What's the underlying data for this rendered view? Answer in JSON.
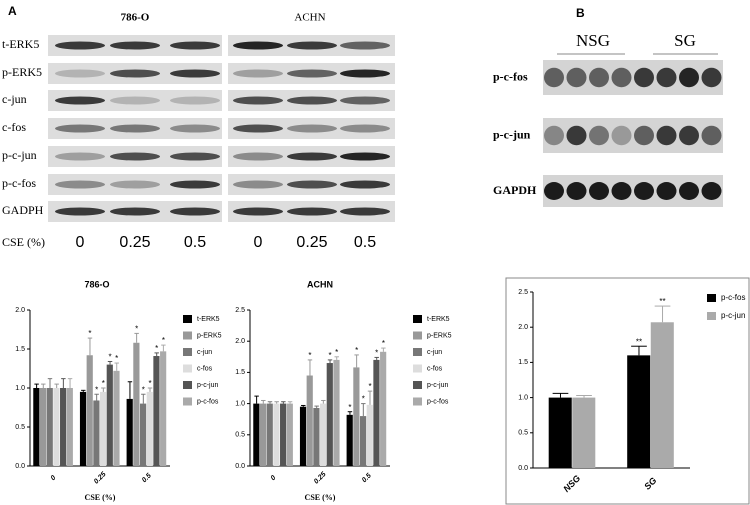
{
  "panel_a": {
    "label": "A",
    "cell_lines": [
      "786-O",
      "ACHN"
    ],
    "proteins": [
      "t-ERK5",
      "p-ERK5",
      "c-jun",
      "c-fos",
      "p-c-jun",
      "p-c-fos",
      "GADPH"
    ],
    "dose_label": "CSE (%)",
    "doses": [
      "0",
      "0.25",
      "0.5",
      "0",
      "0.25",
      "0.5"
    ]
  },
  "panel_b": {
    "label": "B",
    "groups": [
      "NSG",
      "SG"
    ],
    "proteins": [
      "p-c-fos",
      "p-c-jun",
      "GAPDH"
    ]
  },
  "chart_data": [
    {
      "type": "bar",
      "title": "786-O",
      "x_label": "CSE (%)",
      "categories": [
        "0",
        "0.25",
        "0.5"
      ],
      "ylim": [
        0,
        2.0
      ],
      "yticks": [
        {
          "value": 0,
          "label": "0.0"
        },
        {
          "value": 0.5,
          "label": "0.5"
        },
        {
          "value": 1,
          "label": "1.0"
        },
        {
          "value": 1.5,
          "label": "1.5"
        },
        {
          "value": 2,
          "label": "2.0"
        }
      ],
      "legend": "right",
      "series": [
        {
          "name": "t-ERK5",
          "color": "#000000",
          "values": [
            1.0,
            0.95,
            0.86
          ],
          "errors": [
            0.05,
            0.02,
            0.22
          ],
          "significance": [
            null,
            null,
            null
          ]
        },
        {
          "name": "p-ERK5",
          "color": "#999999",
          "values": [
            1.0,
            1.42,
            1.58
          ],
          "errors": [
            0.05,
            0.22,
            0.12
          ],
          "significance": [
            null,
            "*",
            "*"
          ]
        },
        {
          "name": "c-jun",
          "color": "#777777",
          "values": [
            1.0,
            0.84,
            0.8
          ],
          "errors": [
            0.12,
            0.08,
            0.12
          ],
          "significance": [
            null,
            "*",
            "*"
          ]
        },
        {
          "name": "c-fos",
          "color": "#dddddd",
          "values": [
            1.0,
            0.95,
            0.95
          ],
          "errors": [
            0.05,
            0.05,
            0.05
          ],
          "significance": [
            null,
            "*",
            "*"
          ]
        },
        {
          "name": "p-c-jun",
          "color": "#555555",
          "values": [
            1.0,
            1.3,
            1.41
          ],
          "errors": [
            0.12,
            0.04,
            0.04
          ],
          "significance": [
            null,
            "*",
            "*"
          ]
        },
        {
          "name": "p-c-fos",
          "color": "#aaaaaa",
          "values": [
            1.0,
            1.22,
            1.47
          ],
          "errors": [
            0.12,
            0.1,
            0.08
          ],
          "significance": [
            null,
            "*",
            "*"
          ]
        }
      ]
    },
    {
      "type": "bar",
      "title": "ACHN",
      "x_label": "CSE (%)",
      "categories": [
        "0",
        "0.25",
        "0.5"
      ],
      "ylim": [
        0,
        2.5
      ],
      "yticks": [
        {
          "value": 0,
          "label": "0.0"
        },
        {
          "value": 0.5,
          "label": "0.5"
        },
        {
          "value": 1,
          "label": "1.0"
        },
        {
          "value": 1.5,
          "label": "1.5"
        },
        {
          "value": 2,
          "label": "2.0"
        },
        {
          "value": 2.5,
          "label": "2.5"
        }
      ],
      "legend": "right",
      "series": [
        {
          "name": "t-ERK5",
          "color": "#000000",
          "values": [
            1.0,
            0.95,
            0.82
          ],
          "errors": [
            0.12,
            0.02,
            0.05
          ],
          "significance": [
            null,
            null,
            "*"
          ]
        },
        {
          "name": "p-ERK5",
          "color": "#999999",
          "values": [
            1.0,
            1.45,
            1.58
          ],
          "errors": [
            0.05,
            0.25,
            0.2
          ],
          "significance": [
            null,
            "*",
            "*"
          ]
        },
        {
          "name": "c-jun",
          "color": "#777777",
          "values": [
            1.0,
            0.93,
            0.8
          ],
          "errors": [
            0.03,
            0.03,
            0.2
          ],
          "significance": [
            null,
            null,
            "*"
          ]
        },
        {
          "name": "c-fos",
          "color": "#dddddd",
          "values": [
            1.0,
            1.0,
            0.98
          ],
          "errors": [
            0.03,
            0.05,
            0.22
          ],
          "significance": [
            null,
            null,
            "*"
          ]
        },
        {
          "name": "p-c-jun",
          "color": "#555555",
          "values": [
            1.0,
            1.65,
            1.7
          ],
          "errors": [
            0.03,
            0.05,
            0.04
          ],
          "significance": [
            null,
            "*",
            "*"
          ]
        },
        {
          "name": "p-c-fos",
          "color": "#aaaaaa",
          "values": [
            1.0,
            1.7,
            1.83
          ],
          "errors": [
            0.03,
            0.05,
            0.06
          ],
          "significance": [
            null,
            "*",
            "*"
          ]
        }
      ]
    },
    {
      "type": "bar",
      "categories": [
        "NSG",
        "SG"
      ],
      "ylim": [
        0,
        2.5
      ],
      "yticks": [
        {
          "value": 0,
          "label": "0.0"
        },
        {
          "value": 0.5,
          "label": "0.5"
        },
        {
          "value": 1,
          "label": "1.0"
        },
        {
          "value": 1.5,
          "label": "1.5"
        },
        {
          "value": 2,
          "label": "2.0"
        },
        {
          "value": 2.5,
          "label": "2.5"
        }
      ],
      "legend": "right",
      "series": [
        {
          "name": "p-c-fos",
          "color": "#000000",
          "values": [
            1.0,
            1.6
          ],
          "errors": [
            0.06,
            0.13
          ],
          "significance": [
            null,
            "**"
          ]
        },
        {
          "name": "p-c-jun",
          "color": "#aaaaaa",
          "values": [
            1.0,
            2.07
          ],
          "errors": [
            0.03,
            0.23
          ],
          "significance": [
            null,
            "**"
          ]
        }
      ]
    }
  ]
}
